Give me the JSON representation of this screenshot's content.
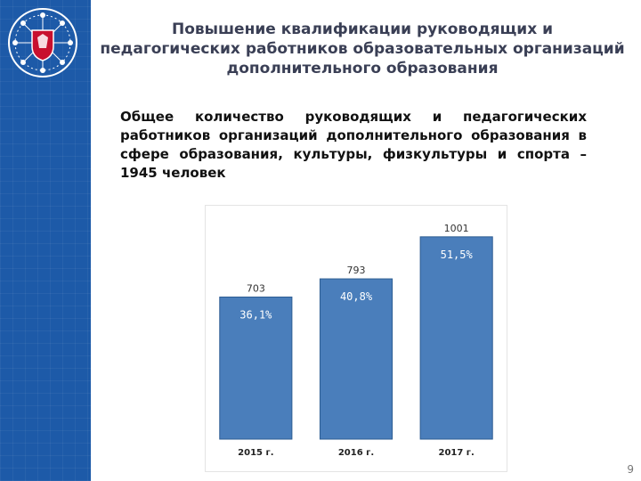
{
  "slide": {
    "title": "Повышение квалификации руководящих и педагогических работников образовательных организаций дополнительного образования",
    "subtitle": "Общее количество руководящих и педагогических работников организаций дополнительного образования в сфере образования, культуры, физкультуры и спорта – 1945 человек",
    "page_number": "9"
  },
  "colors": {
    "sidebar": "#1d5aa8",
    "bar": "#4a7ebb",
    "bar_border": "#2e5d93",
    "logo_red": "#c8102e"
  },
  "logo": {
    "icon": "coat-of-arms-icon"
  },
  "chart_data": {
    "type": "bar",
    "categories": [
      "2015 г.",
      "2016 г.",
      "2017 г."
    ],
    "values": [
      703,
      793,
      1001
    ],
    "value_labels": [
      "703",
      "793",
      "1001"
    ],
    "percent_labels": [
      "36,1%",
      "40,8%",
      "51,5%"
    ],
    "ylim": [
      0,
      1040
    ],
    "grid": false,
    "legend": "none"
  }
}
